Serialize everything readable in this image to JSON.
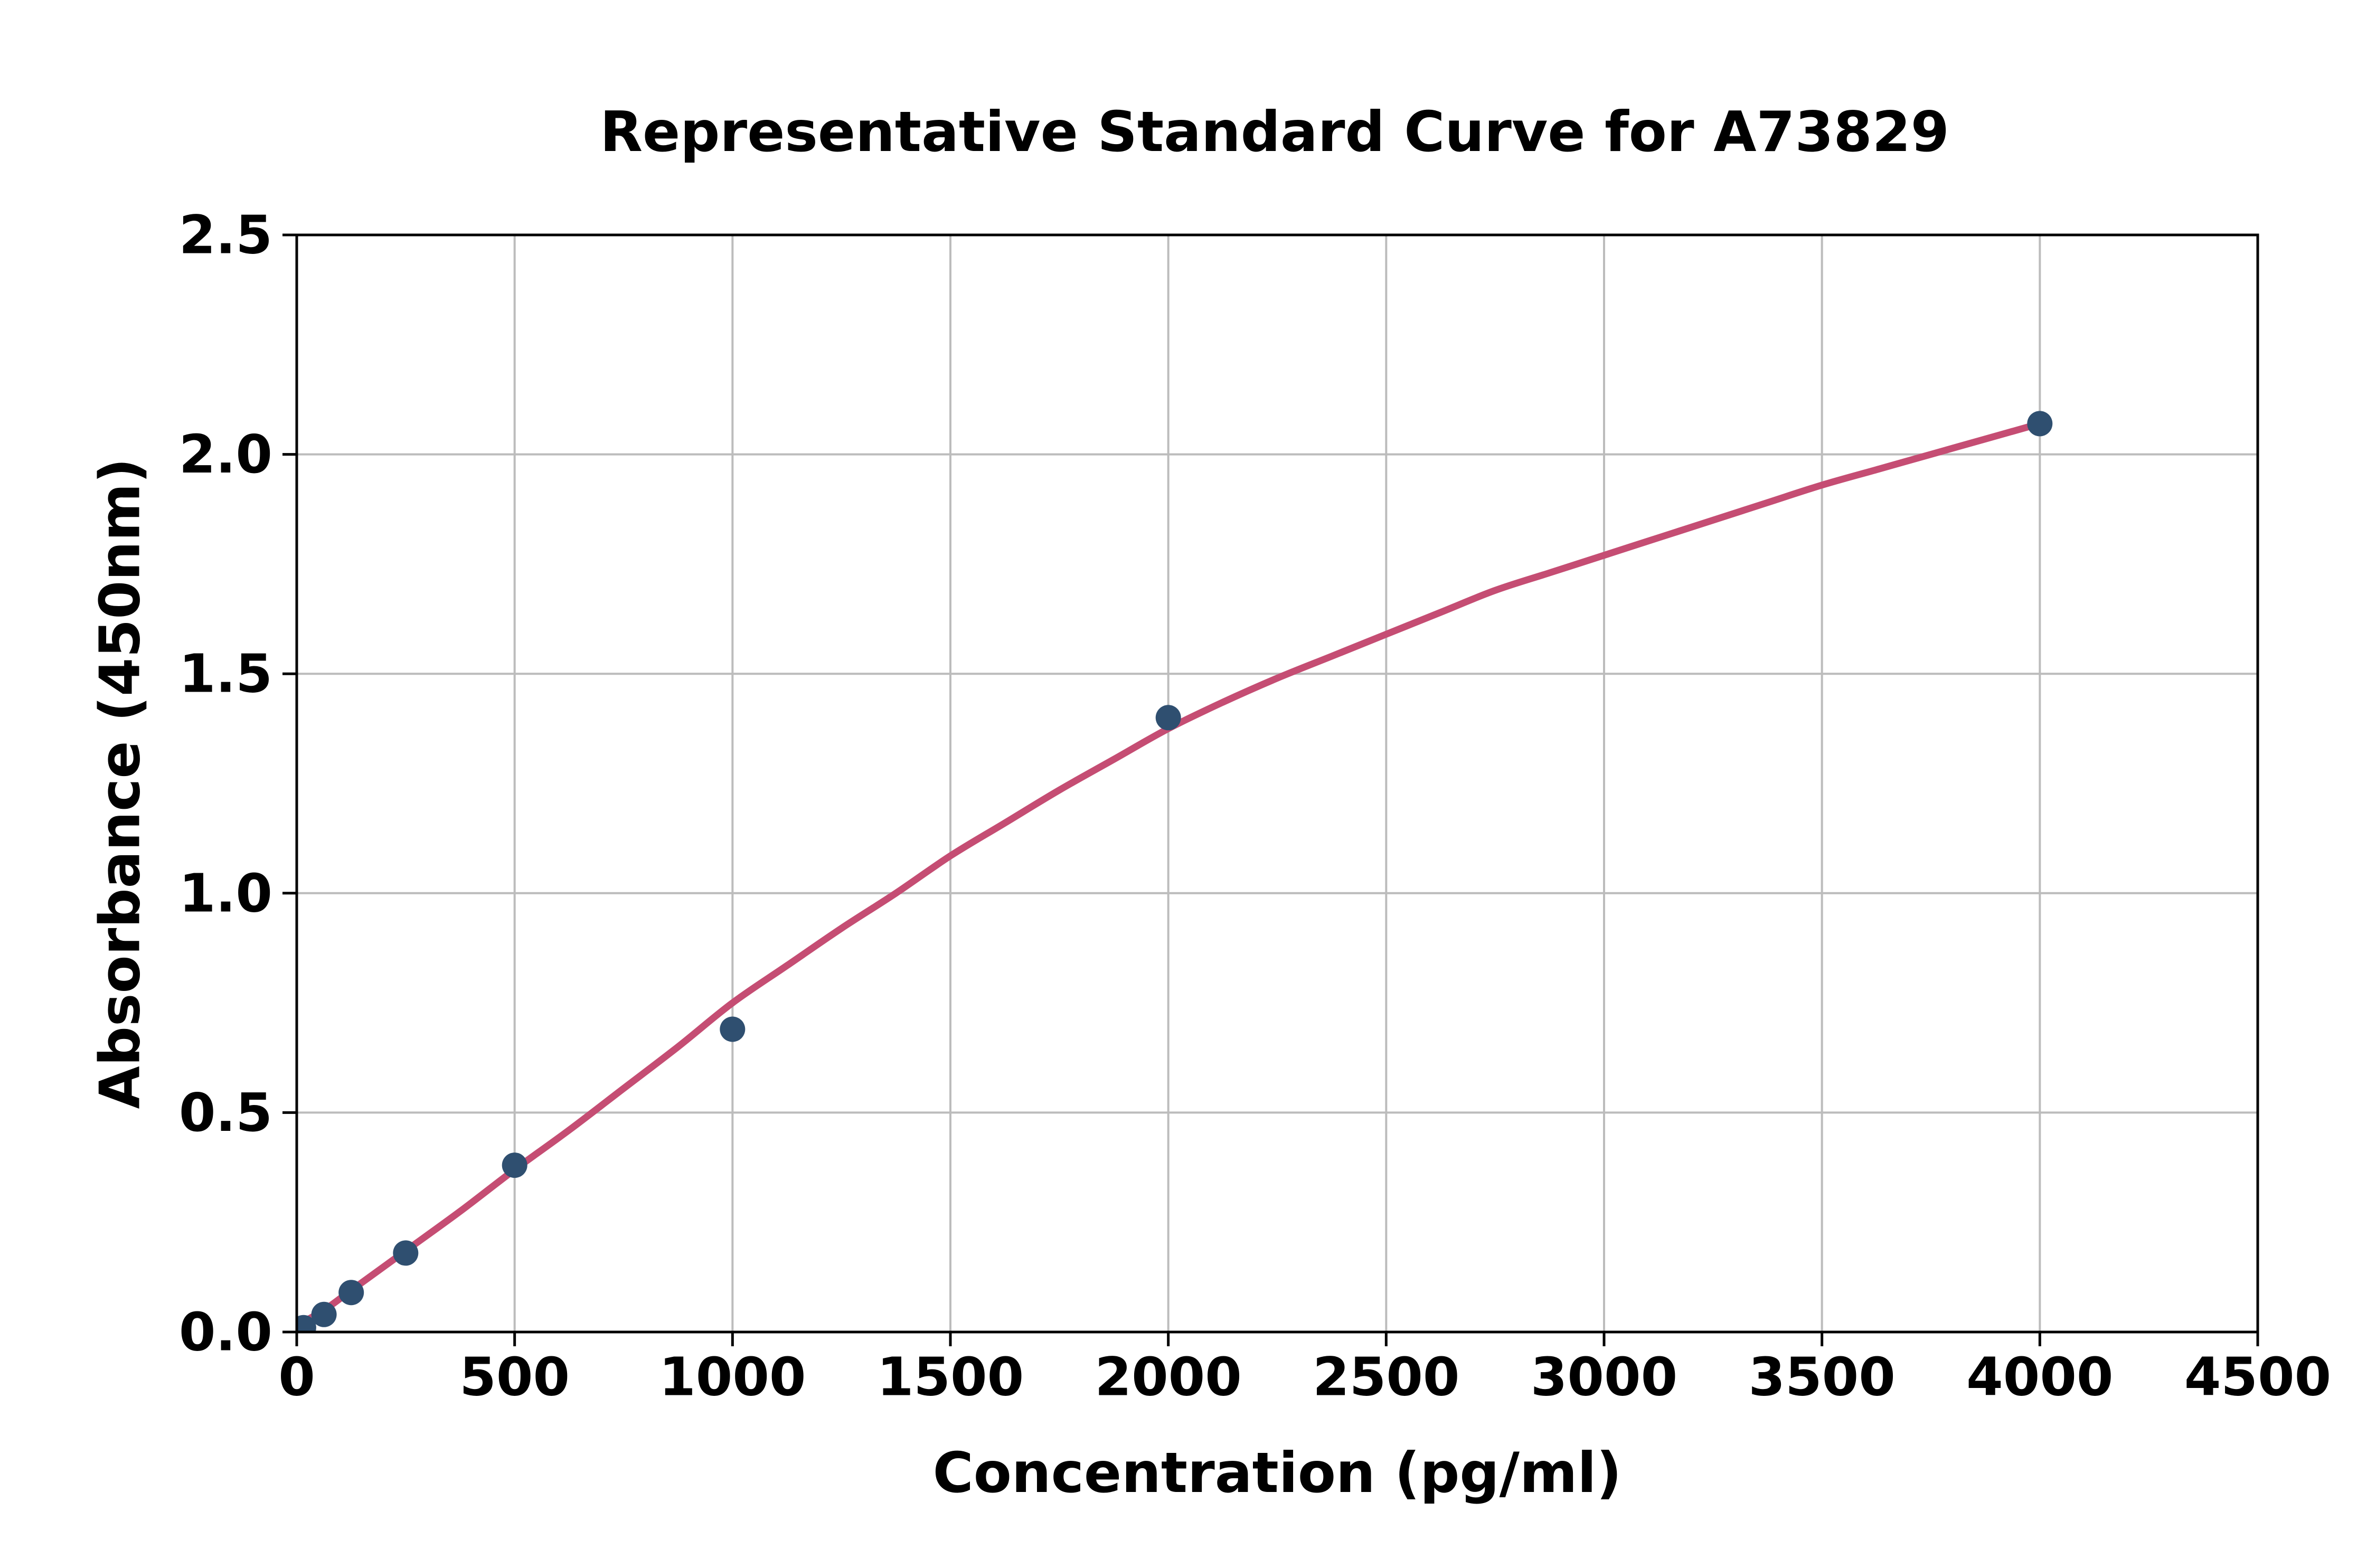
{
  "chart_data": {
    "type": "scatter",
    "title": "Representative Standard Curve for A73829",
    "xlabel": "Concentration (pg/ml)",
    "ylabel": "Absorbance (450nm)",
    "xlim": [
      0,
      4500
    ],
    "ylim": [
      0,
      2.5
    ],
    "x_ticks": [
      0,
      500,
      1000,
      1500,
      2000,
      2500,
      3000,
      3500,
      4000,
      4500
    ],
    "x_tick_labels": [
      "0",
      "500",
      "1000",
      "1500",
      "2000",
      "2500",
      "3000",
      "3500",
      "4000",
      "4500"
    ],
    "y_ticks": [
      0,
      0.5,
      1.0,
      1.5,
      2.0,
      2.5
    ],
    "y_tick_labels": [
      "0.0",
      "0.5",
      "1.0",
      "1.5",
      "2.0",
      "2.5"
    ],
    "grid": true,
    "legend_position": "none",
    "colors": {
      "marker": "#2F4F70",
      "curve": "#C54D73",
      "grid": "#BCBCBC",
      "axis": "#000000",
      "background": "#FFFFFF"
    },
    "series": [
      {
        "name": "standard-points",
        "type": "scatter",
        "color": "#2F4F70",
        "points": [
          [
            15.6,
            0.01
          ],
          [
            62.5,
            0.04
          ],
          [
            125,
            0.09
          ],
          [
            250,
            0.18
          ],
          [
            500,
            0.38
          ],
          [
            1000,
            0.69
          ],
          [
            2000,
            1.4
          ],
          [
            4000,
            2.07
          ]
        ]
      },
      {
        "name": "fit-curve",
        "type": "line",
        "color": "#C54D73",
        "points": [
          [
            0,
            0.015
          ],
          [
            62.5,
            0.05
          ],
          [
            125,
            0.095
          ],
          [
            250,
            0.185
          ],
          [
            375,
            0.275
          ],
          [
            500,
            0.37
          ],
          [
            625,
            0.46
          ],
          [
            750,
            0.555
          ],
          [
            875,
            0.65
          ],
          [
            1000,
            0.75
          ],
          [
            1125,
            0.835
          ],
          [
            1250,
            0.92
          ],
          [
            1375,
            1.0
          ],
          [
            1500,
            1.085
          ],
          [
            1625,
            1.16
          ],
          [
            1750,
            1.235
          ],
          [
            1875,
            1.305
          ],
          [
            2000,
            1.375
          ],
          [
            2125,
            1.435
          ],
          [
            2250,
            1.49
          ],
          [
            2375,
            1.54
          ],
          [
            2500,
            1.59
          ],
          [
            2625,
            1.64
          ],
          [
            2750,
            1.69
          ],
          [
            2875,
            1.73
          ],
          [
            3000,
            1.77
          ],
          [
            3125,
            1.81
          ],
          [
            3250,
            1.85
          ],
          [
            3375,
            1.89
          ],
          [
            3500,
            1.93
          ],
          [
            3625,
            1.965
          ],
          [
            3750,
            2.0
          ],
          [
            3875,
            2.035
          ],
          [
            4000,
            2.07
          ]
        ]
      }
    ]
  }
}
